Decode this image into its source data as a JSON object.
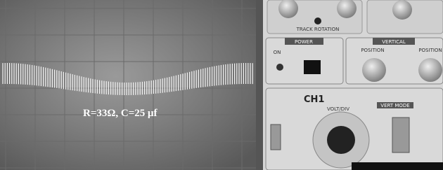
{
  "screen": {
    "caption": "R=33Ω, C=25 μf"
  },
  "panel": {
    "track_rotation": "TRACK ROTATION",
    "power": "POWER",
    "on": "ON",
    "vertical": "VERTICAL",
    "position_1": "POSITION",
    "position_2": "POSITION",
    "ch1": "CH1",
    "volt_div": "VOLT/DIV",
    "vert_mode": "VERT MODE"
  }
}
